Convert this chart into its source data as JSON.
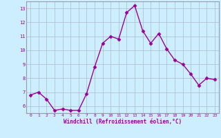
{
  "x": [
    0,
    1,
    2,
    3,
    4,
    5,
    6,
    7,
    8,
    9,
    10,
    11,
    12,
    13,
    14,
    15,
    16,
    17,
    18,
    19,
    20,
    21,
    22,
    23
  ],
  "y": [
    6.8,
    7.0,
    6.5,
    5.7,
    5.8,
    5.7,
    5.7,
    6.9,
    8.8,
    10.5,
    11.0,
    10.8,
    12.7,
    13.2,
    11.4,
    10.5,
    11.2,
    10.1,
    9.3,
    9.0,
    8.3,
    7.5,
    8.0,
    7.9
  ],
  "line_color": "#990099",
  "marker": "D",
  "marker_size": 2.5,
  "linewidth": 1.0,
  "background_color": "#cceeff",
  "grid_color": "#aabbcc",
  "xlabel": "Windchill (Refroidissement éolien,°C)",
  "xlabel_color": "#990099",
  "tick_color": "#990099",
  "ylim": [
    5.5,
    13.5
  ],
  "xlim": [
    -0.5,
    23.5
  ],
  "yticks": [
    6,
    7,
    8,
    9,
    10,
    11,
    12,
    13
  ],
  "xticks": [
    0,
    1,
    2,
    3,
    4,
    5,
    6,
    7,
    8,
    9,
    10,
    11,
    12,
    13,
    14,
    15,
    16,
    17,
    18,
    19,
    20,
    21,
    22,
    23
  ],
  "spine_color": "#9999aa"
}
